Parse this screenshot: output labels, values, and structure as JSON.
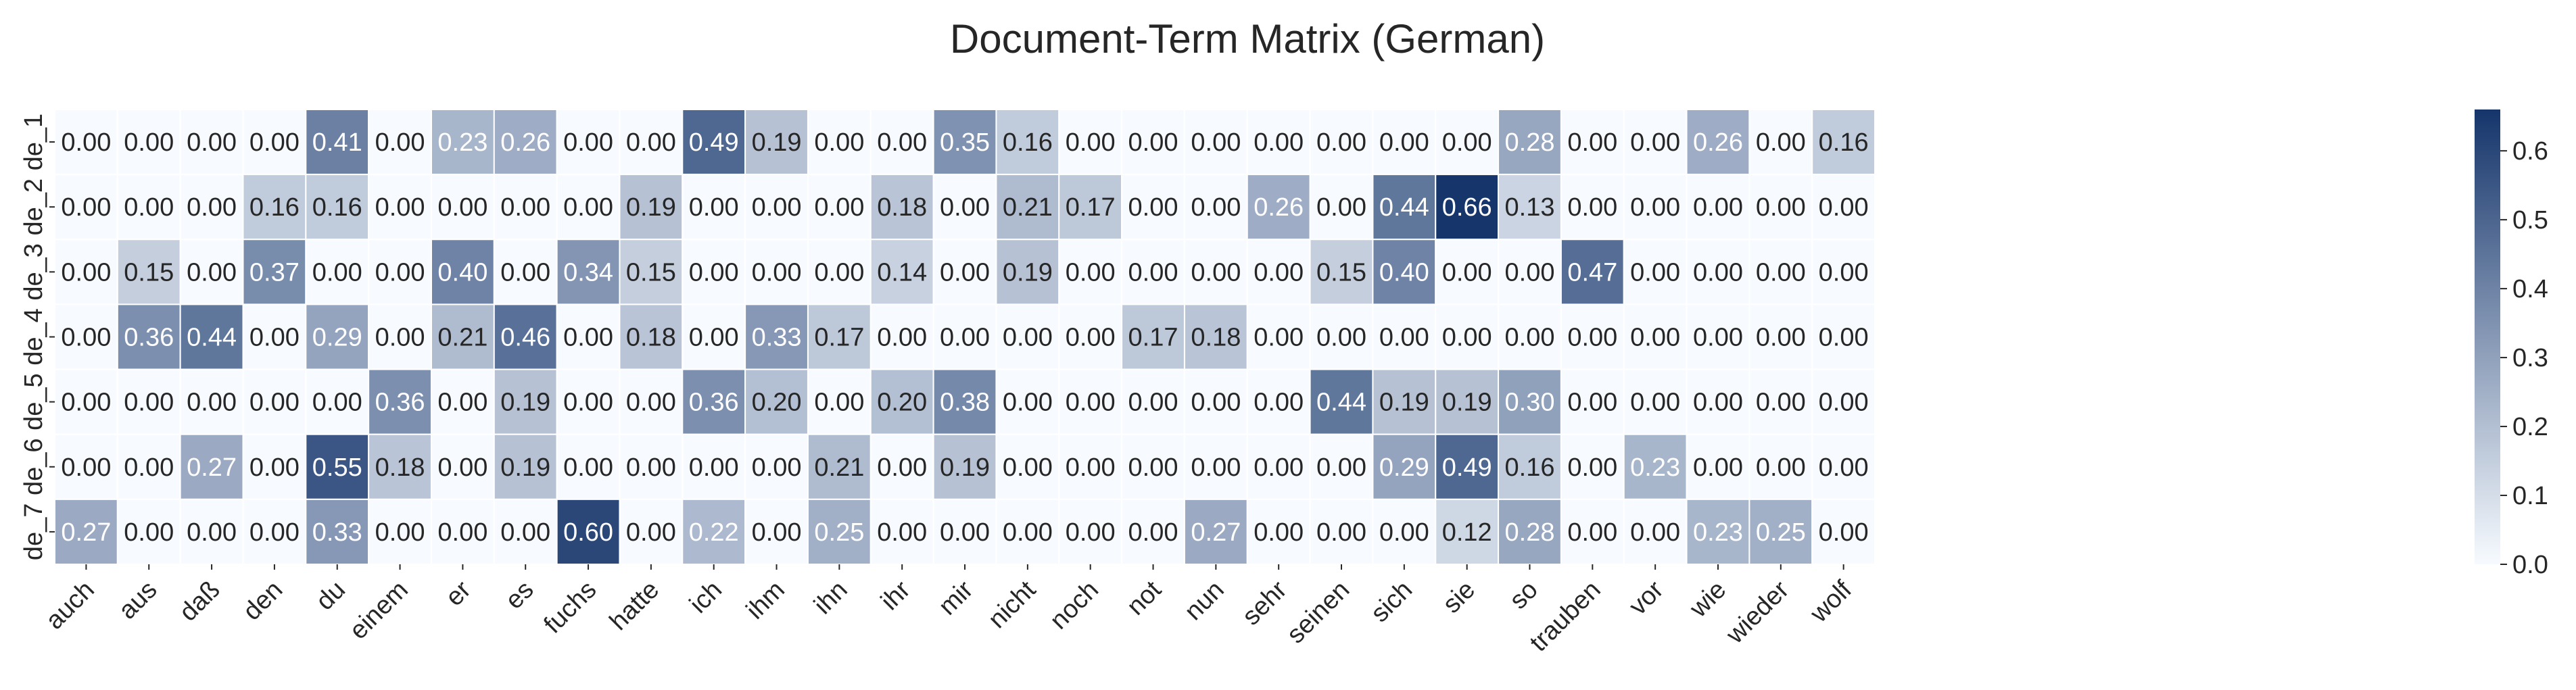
{
  "chart_data": {
    "type": "heatmap",
    "title": "Document-Term Matrix (German)",
    "xlabel": "",
    "ylabel": "",
    "columns": [
      "auch",
      "aus",
      "daß",
      "den",
      "du",
      "einem",
      "er",
      "es",
      "fuchs",
      "hatte",
      "ich",
      "ihm",
      "ihn",
      "ihr",
      "mir",
      "nicht",
      "noch",
      "not",
      "nun",
      "sehr",
      "seinen",
      "sich",
      "sie",
      "so",
      "trauben",
      "vor",
      "wie",
      "wieder",
      "wolf"
    ],
    "rows": [
      "de_1",
      "de_2",
      "de_3",
      "de_4",
      "de_5",
      "de_6",
      "de_7"
    ],
    "values": [
      [
        0.0,
        0.0,
        0.0,
        0.0,
        0.41,
        0.0,
        0.23,
        0.26,
        0.0,
        0.0,
        0.49,
        0.19,
        0.0,
        0.0,
        0.35,
        0.16,
        0.0,
        0.0,
        0.0,
        0.0,
        0.0,
        0.0,
        0.0,
        0.28,
        0.0,
        0.0,
        0.26,
        0.0,
        0.16
      ],
      [
        0.0,
        0.0,
        0.0,
        0.16,
        0.16,
        0.0,
        0.0,
        0.0,
        0.0,
        0.19,
        0.0,
        0.0,
        0.0,
        0.18,
        0.0,
        0.21,
        0.17,
        0.0,
        0.0,
        0.26,
        0.0,
        0.44,
        0.66,
        0.13,
        0.0,
        0.0,
        0.0,
        0.0,
        0.0
      ],
      [
        0.0,
        0.15,
        0.0,
        0.37,
        0.0,
        0.0,
        0.4,
        0.0,
        0.34,
        0.15,
        0.0,
        0.0,
        0.0,
        0.14,
        0.0,
        0.19,
        0.0,
        0.0,
        0.0,
        0.0,
        0.15,
        0.4,
        0.0,
        0.0,
        0.47,
        0.0,
        0.0,
        0.0,
        0.0
      ],
      [
        0.0,
        0.36,
        0.44,
        0.0,
        0.29,
        0.0,
        0.21,
        0.46,
        0.0,
        0.18,
        0.0,
        0.33,
        0.17,
        0.0,
        0.0,
        0.0,
        0.0,
        0.17,
        0.18,
        0.0,
        0.0,
        0.0,
        0.0,
        0.0,
        0.0,
        0.0,
        0.0,
        0.0,
        0.0
      ],
      [
        0.0,
        0.0,
        0.0,
        0.0,
        0.0,
        0.36,
        0.0,
        0.19,
        0.0,
        0.0,
        0.36,
        0.2,
        0.0,
        0.2,
        0.38,
        0.0,
        0.0,
        0.0,
        0.0,
        0.0,
        0.44,
        0.19,
        0.19,
        0.3,
        0.0,
        0.0,
        0.0,
        0.0,
        0.0
      ],
      [
        0.0,
        0.0,
        0.27,
        0.0,
        0.55,
        0.18,
        0.0,
        0.19,
        0.0,
        0.0,
        0.0,
        0.0,
        0.21,
        0.0,
        0.19,
        0.0,
        0.0,
        0.0,
        0.0,
        0.0,
        0.0,
        0.29,
        0.49,
        0.16,
        0.0,
        0.23,
        0.0,
        0.0,
        0.0
      ],
      [
        0.27,
        0.0,
        0.0,
        0.0,
        0.33,
        0.0,
        0.0,
        0.0,
        0.6,
        0.0,
        0.22,
        0.0,
        0.25,
        0.0,
        0.0,
        0.0,
        0.0,
        0.0,
        0.27,
        0.0,
        0.0,
        0.0,
        0.12,
        0.28,
        0.0,
        0.0,
        0.23,
        0.25,
        0.0
      ]
    ],
    "value_format": "0.00",
    "color_range": [
      0.0,
      0.66
    ],
    "colorbar_ticks": [
      "0.0",
      "0.1",
      "0.2",
      "0.3",
      "0.4",
      "0.5",
      "0.6"
    ],
    "colormap": {
      "low": "#f7fbff",
      "high": "#15356b"
    },
    "grid_line_color": "#ffffff",
    "legend": "colorbar-right"
  }
}
